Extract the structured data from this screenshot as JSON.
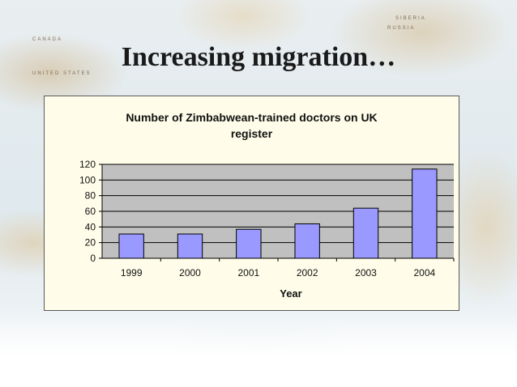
{
  "slide": {
    "title": "Increasing migration…"
  },
  "map_labels": {
    "canada": "CANADA",
    "united_states": "UNITED STATES",
    "russia": "RUSSIA",
    "siberia": "SIBERIA"
  },
  "chart_data": {
    "type": "bar",
    "title_line1": "Number of Zimbabwean-trained doctors on UK",
    "title_line2": "register",
    "xlabel": "Year",
    "ylabel": "",
    "categories": [
      "1999",
      "2000",
      "2001",
      "2002",
      "2003",
      "2004"
    ],
    "values": [
      31,
      31,
      37,
      44,
      64,
      114
    ],
    "ylim": [
      0,
      120
    ],
    "yticks": [
      "0",
      "20",
      "40",
      "60",
      "80",
      "100",
      "120"
    ],
    "grid": true,
    "legend": "none",
    "colors": {
      "bar_fill": "#9999ff",
      "bar_stroke": "#000000",
      "plot_bg": "#c0c0c0",
      "panel_bg": "#fffde9",
      "gridline": "#000000"
    }
  }
}
